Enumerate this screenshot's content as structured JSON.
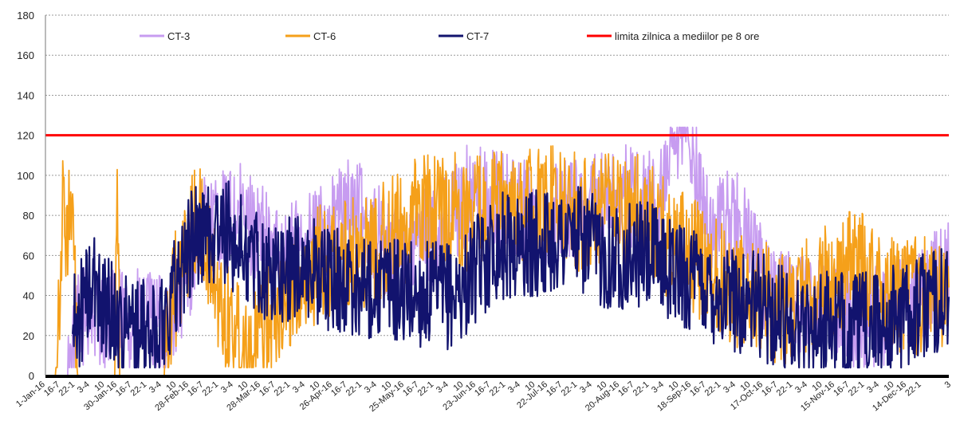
{
  "chart_data": {
    "type": "line",
    "title": "",
    "xlabel": "",
    "ylabel": "",
    "ylim": [
      0,
      180
    ],
    "yticks": [
      0,
      20,
      40,
      60,
      80,
      100,
      120,
      140,
      160,
      180
    ],
    "grid": true,
    "legend_position": "top",
    "x_tick_labels": [
      "1-Jan-16",
      "30-Jan-16",
      "28-Feb-16",
      "28-Mar-16",
      "26-Apr-16",
      "25-May-16",
      "23-Jun-16",
      "22-Jul-16",
      "20-Aug-16",
      "18-Sep-16",
      "17-Oct-16",
      "15-Nov-16",
      "14-Dec-16"
    ],
    "x_tick_filler": [
      "16-7",
      "22-1",
      "3-4",
      "10"
    ],
    "x_tick_tail": [
      "22-1",
      "3"
    ],
    "threshold": {
      "name": "limita zilnica a mediilor pe 8 ore",
      "value": 120,
      "color": "#ff0000"
    },
    "series": [
      {
        "name": "CT-3",
        "color": "#c79cf0",
        "anchors": [
          {
            "x": "2016-01-01",
            "y": 0
          },
          {
            "x": "2016-01-10",
            "y": 0
          },
          {
            "x": "2016-01-15",
            "y": 30
          },
          {
            "x": "2016-02-05",
            "y": 28
          },
          {
            "x": "2016-02-20",
            "y": 25
          },
          {
            "x": "2016-03-05",
            "y": 75
          },
          {
            "x": "2016-03-20",
            "y": 80
          },
          {
            "x": "2016-04-05",
            "y": 60
          },
          {
            "x": "2016-04-20",
            "y": 70
          },
          {
            "x": "2016-05-05",
            "y": 85
          },
          {
            "x": "2016-05-20",
            "y": 60
          },
          {
            "x": "2016-06-05",
            "y": 70
          },
          {
            "x": "2016-06-20",
            "y": 90
          },
          {
            "x": "2016-07-05",
            "y": 85
          },
          {
            "x": "2016-07-20",
            "y": 80
          },
          {
            "x": "2016-08-05",
            "y": 85
          },
          {
            "x": "2016-08-20",
            "y": 90
          },
          {
            "x": "2016-09-05",
            "y": 85
          },
          {
            "x": "2016-09-16",
            "y": 127
          },
          {
            "x": "2016-09-25",
            "y": 70
          },
          {
            "x": "2016-10-05",
            "y": 80
          },
          {
            "x": "2016-10-20",
            "y": 40
          },
          {
            "x": "2016-11-05",
            "y": 35
          },
          {
            "x": "2016-11-20",
            "y": 30
          },
          {
            "x": "2016-12-05",
            "y": 30
          },
          {
            "x": "2016-12-20",
            "y": 40
          },
          {
            "x": "2016-12-31",
            "y": 55
          }
        ],
        "amplitude": 26
      },
      {
        "name": "CT-6",
        "color": "#f5a01a",
        "anchors": [
          {
            "x": "2016-01-01",
            "y": 0
          },
          {
            "x": "2016-01-05",
            "y": 0
          },
          {
            "x": "2016-01-08",
            "y": 80
          },
          {
            "x": "2016-01-12",
            "y": 75
          },
          {
            "x": "2016-01-14",
            "y": 0
          },
          {
            "x": "2016-01-29",
            "y": 0
          },
          {
            "x": "2016-01-30",
            "y": 95
          },
          {
            "x": "2016-01-31",
            "y": 0
          },
          {
            "x": "2016-02-18",
            "y": 0
          },
          {
            "x": "2016-02-22",
            "y": 40
          },
          {
            "x": "2016-03-02",
            "y": 80
          },
          {
            "x": "2016-03-12",
            "y": 35
          },
          {
            "x": "2016-03-24",
            "y": 12
          },
          {
            "x": "2016-04-02",
            "y": 35
          },
          {
            "x": "2016-04-20",
            "y": 55
          },
          {
            "x": "2016-05-05",
            "y": 60
          },
          {
            "x": "2016-05-20",
            "y": 70
          },
          {
            "x": "2016-06-05",
            "y": 85
          },
          {
            "x": "2016-06-20",
            "y": 80
          },
          {
            "x": "2016-07-05",
            "y": 85
          },
          {
            "x": "2016-07-25",
            "y": 85
          },
          {
            "x": "2016-08-10",
            "y": 80
          },
          {
            "x": "2016-08-25",
            "y": 85
          },
          {
            "x": "2016-09-10",
            "y": 65
          },
          {
            "x": "2016-09-25",
            "y": 55
          },
          {
            "x": "2016-10-10",
            "y": 40
          },
          {
            "x": "2016-10-25",
            "y": 35
          },
          {
            "x": "2016-11-10",
            "y": 45
          },
          {
            "x": "2016-11-22",
            "y": 55
          },
          {
            "x": "2016-12-10",
            "y": 40
          },
          {
            "x": "2016-12-31",
            "y": 40
          }
        ],
        "amplitude": 30
      },
      {
        "name": "CT-7",
        "color": "#12136e",
        "anchors": [
          {
            "x": "2016-01-12",
            "y": 22
          },
          {
            "x": "2016-01-20",
            "y": 45
          },
          {
            "x": "2016-02-01",
            "y": 25
          },
          {
            "x": "2016-02-15",
            "y": 20
          },
          {
            "x": "2016-03-01",
            "y": 70
          },
          {
            "x": "2016-03-15",
            "y": 70
          },
          {
            "x": "2016-04-01",
            "y": 50
          },
          {
            "x": "2016-04-15",
            "y": 55
          },
          {
            "x": "2016-05-01",
            "y": 45
          },
          {
            "x": "2016-05-15",
            "y": 45
          },
          {
            "x": "2016-06-01",
            "y": 40
          },
          {
            "x": "2016-06-15",
            "y": 40
          },
          {
            "x": "2016-07-01",
            "y": 65
          },
          {
            "x": "2016-07-15",
            "y": 65
          },
          {
            "x": "2016-08-01",
            "y": 70
          },
          {
            "x": "2016-08-15",
            "y": 60
          },
          {
            "x": "2016-09-01",
            "y": 60
          },
          {
            "x": "2016-09-15",
            "y": 50
          },
          {
            "x": "2016-10-01",
            "y": 40
          },
          {
            "x": "2016-10-15",
            "y": 35
          },
          {
            "x": "2016-11-01",
            "y": 25
          },
          {
            "x": "2016-11-15",
            "y": 25
          },
          {
            "x": "2016-12-01",
            "y": 25
          },
          {
            "x": "2016-12-31",
            "y": 40
          }
        ],
        "amplitude": 27
      }
    ]
  }
}
